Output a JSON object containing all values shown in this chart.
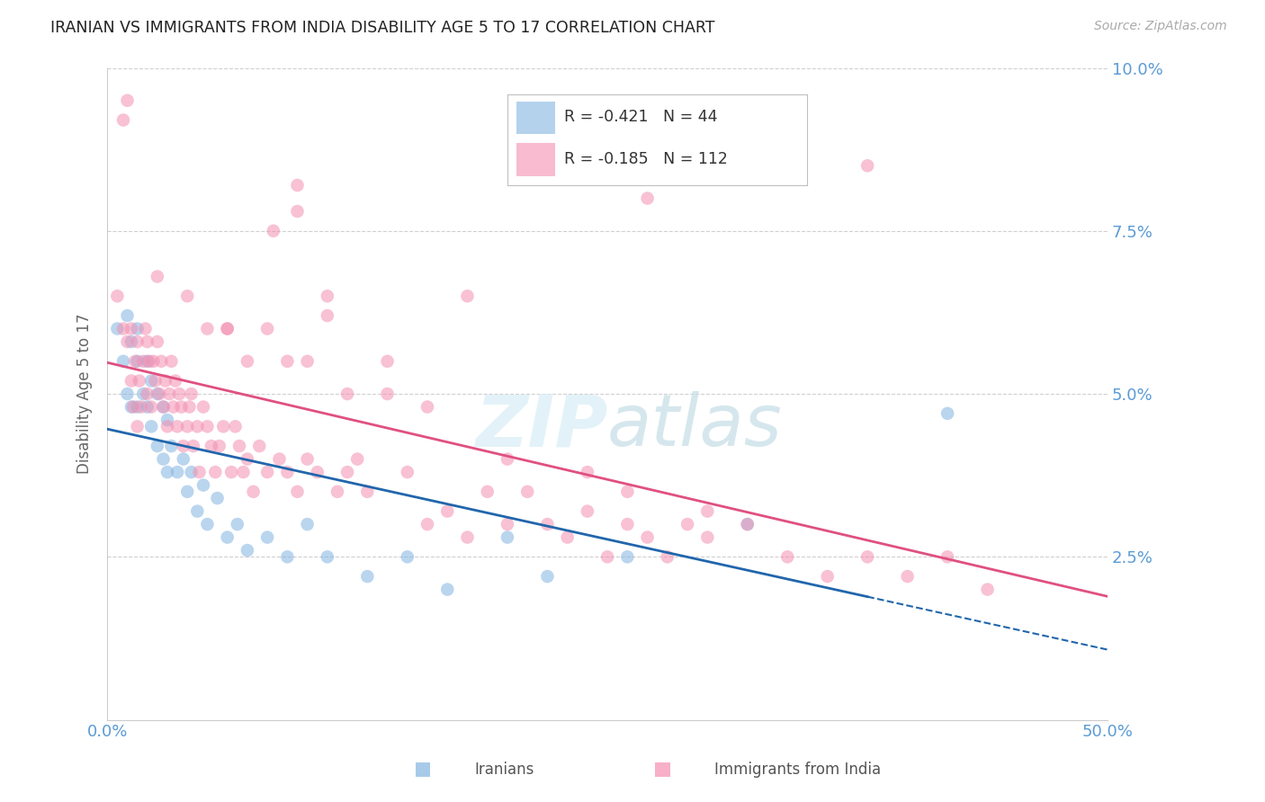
{
  "title": "IRANIAN VS IMMIGRANTS FROM INDIA DISABILITY AGE 5 TO 17 CORRELATION CHART",
  "source": "Source: ZipAtlas.com",
  "ylabel": "Disability Age 5 to 17",
  "xlabel_iranians": "Iranians",
  "xlabel_india": "Immigrants from India",
  "xlim": [
    0.0,
    0.5
  ],
  "ylim": [
    0.0,
    0.1
  ],
  "iranians_R": -0.421,
  "iranians_N": 44,
  "india_R": -0.185,
  "india_N": 112,
  "color_iranian": "#82b4e0",
  "color_india": "#f48fb1",
  "color_line_iranian": "#2166ac",
  "color_line_india": "#e05080",
  "color_axis_text": "#5b9bd5",
  "color_grid": "#d0d0d0",
  "color_legend_border": "#c0c0c0",
  "iranians_x": [
    0.005,
    0.008,
    0.01,
    0.01,
    0.012,
    0.012,
    0.015,
    0.015,
    0.015,
    0.018,
    0.02,
    0.02,
    0.022,
    0.022,
    0.025,
    0.025,
    0.028,
    0.028,
    0.03,
    0.03,
    0.032,
    0.035,
    0.038,
    0.04,
    0.042,
    0.045,
    0.048,
    0.05,
    0.055,
    0.06,
    0.065,
    0.07,
    0.08,
    0.09,
    0.1,
    0.11,
    0.13,
    0.15,
    0.17,
    0.2,
    0.22,
    0.26,
    0.32,
    0.42
  ],
  "iranians_y": [
    0.06,
    0.055,
    0.062,
    0.05,
    0.058,
    0.048,
    0.06,
    0.055,
    0.048,
    0.05,
    0.055,
    0.048,
    0.052,
    0.045,
    0.05,
    0.042,
    0.048,
    0.04,
    0.046,
    0.038,
    0.042,
    0.038,
    0.04,
    0.035,
    0.038,
    0.032,
    0.036,
    0.03,
    0.034,
    0.028,
    0.03,
    0.026,
    0.028,
    0.025,
    0.03,
    0.025,
    0.022,
    0.025,
    0.02,
    0.028,
    0.022,
    0.025,
    0.03,
    0.047
  ],
  "india_x": [
    0.005,
    0.008,
    0.01,
    0.01,
    0.012,
    0.012,
    0.013,
    0.014,
    0.015,
    0.015,
    0.016,
    0.017,
    0.018,
    0.019,
    0.02,
    0.02,
    0.021,
    0.022,
    0.023,
    0.024,
    0.025,
    0.026,
    0.027,
    0.028,
    0.029,
    0.03,
    0.031,
    0.032,
    0.033,
    0.034,
    0.035,
    0.036,
    0.037,
    0.038,
    0.04,
    0.041,
    0.042,
    0.043,
    0.045,
    0.046,
    0.048,
    0.05,
    0.052,
    0.054,
    0.056,
    0.058,
    0.06,
    0.062,
    0.064,
    0.066,
    0.068,
    0.07,
    0.073,
    0.076,
    0.08,
    0.083,
    0.086,
    0.09,
    0.095,
    0.1,
    0.105,
    0.11,
    0.115,
    0.12,
    0.125,
    0.13,
    0.14,
    0.15,
    0.16,
    0.17,
    0.18,
    0.19,
    0.2,
    0.21,
    0.22,
    0.23,
    0.24,
    0.25,
    0.26,
    0.27,
    0.28,
    0.29,
    0.3,
    0.32,
    0.34,
    0.36,
    0.38,
    0.4,
    0.42,
    0.44,
    0.008,
    0.095,
    0.095,
    0.27,
    0.38,
    0.04,
    0.025,
    0.11,
    0.18,
    0.05,
    0.06,
    0.07,
    0.08,
    0.09,
    0.1,
    0.12,
    0.14,
    0.16,
    0.2,
    0.24,
    0.26,
    0.3
  ],
  "india_y": [
    0.065,
    0.06,
    0.095,
    0.058,
    0.06,
    0.052,
    0.048,
    0.055,
    0.058,
    0.045,
    0.052,
    0.048,
    0.055,
    0.06,
    0.058,
    0.05,
    0.055,
    0.048,
    0.055,
    0.052,
    0.058,
    0.05,
    0.055,
    0.048,
    0.052,
    0.045,
    0.05,
    0.055,
    0.048,
    0.052,
    0.045,
    0.05,
    0.048,
    0.042,
    0.045,
    0.048,
    0.05,
    0.042,
    0.045,
    0.038,
    0.048,
    0.045,
    0.042,
    0.038,
    0.042,
    0.045,
    0.06,
    0.038,
    0.045,
    0.042,
    0.038,
    0.04,
    0.035,
    0.042,
    0.038,
    0.075,
    0.04,
    0.038,
    0.035,
    0.04,
    0.038,
    0.062,
    0.035,
    0.038,
    0.04,
    0.035,
    0.055,
    0.038,
    0.03,
    0.032,
    0.028,
    0.035,
    0.03,
    0.035,
    0.03,
    0.028,
    0.032,
    0.025,
    0.03,
    0.028,
    0.025,
    0.03,
    0.028,
    0.03,
    0.025,
    0.022,
    0.025,
    0.022,
    0.025,
    0.02,
    0.092,
    0.082,
    0.078,
    0.08,
    0.085,
    0.065,
    0.068,
    0.065,
    0.065,
    0.06,
    0.06,
    0.055,
    0.06,
    0.055,
    0.055,
    0.05,
    0.05,
    0.048,
    0.04,
    0.038,
    0.035,
    0.032
  ]
}
